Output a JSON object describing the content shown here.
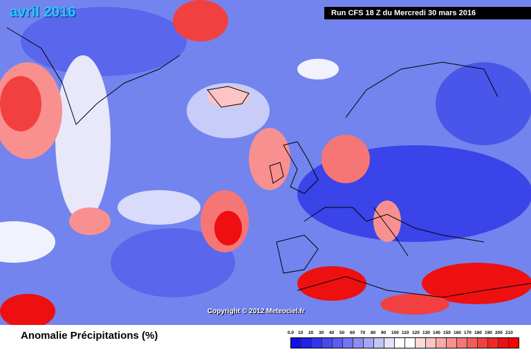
{
  "header": {
    "month": "avril 2016",
    "run": "Run CFS 18 Z du Mercredi 30 mars 2016"
  },
  "copyright": "Copyright © 2012 Meteociel.fr",
  "legend": {
    "title": "Anomalie Précipitations (%)",
    "labels": [
      "0.0",
      "10",
      "20",
      "30",
      "40",
      "50",
      "60",
      "70",
      "80",
      "90",
      "100",
      "110",
      "120",
      "130",
      "140",
      "150",
      "160",
      "170",
      "180",
      "190",
      "200",
      "210"
    ],
    "colors": [
      "#1010e8",
      "#2020ea",
      "#3434ec",
      "#4848ee",
      "#5c5cf0",
      "#7474f2",
      "#8c8cf4",
      "#a6a6f6",
      "#c4c4f8",
      "#e2e2fa",
      "#ffffff",
      "#ffffff",
      "#fcdada",
      "#fcc4c4",
      "#faaaaa",
      "#f89090",
      "#f67676",
      "#f45c5c",
      "#f24040",
      "#f02828",
      "#ee1010",
      "#ff0000"
    ]
  }
}
